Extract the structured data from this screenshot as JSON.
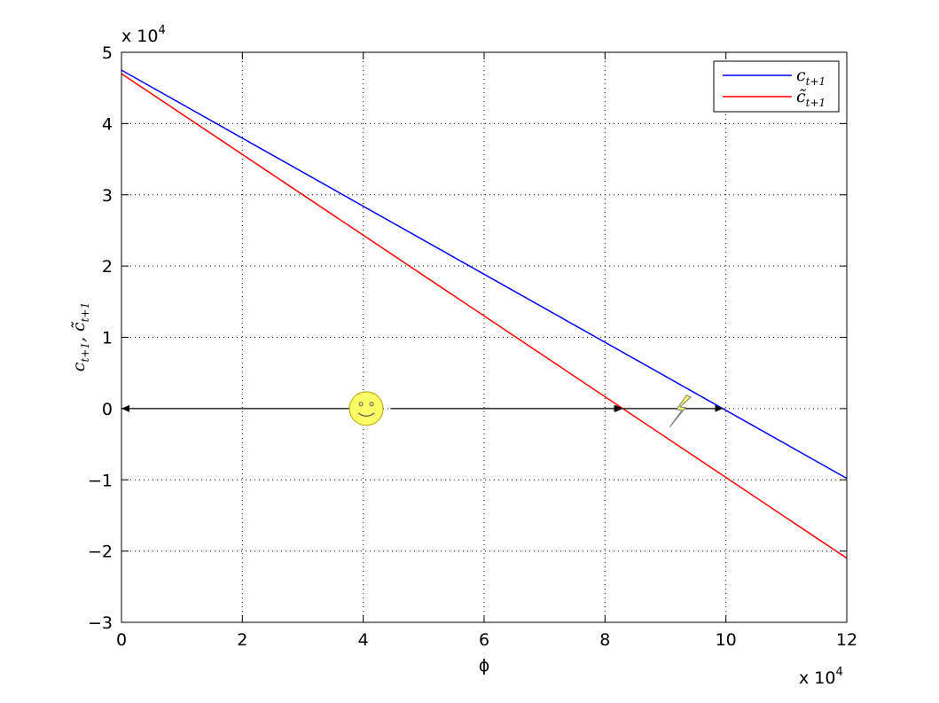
{
  "chart_data": {
    "type": "line",
    "xlabel": "ϕ",
    "ylabel": "c_{t+1}, c̃_{t+1}",
    "x_multiplier_label": "x 10",
    "x_multiplier_exp": "4",
    "y_multiplier_label": "x 10",
    "y_multiplier_exp": "4",
    "xlim": [
      0,
      12
    ],
    "ylim": [
      -3,
      5
    ],
    "x_ticks": [
      0,
      2,
      4,
      6,
      8,
      10,
      12
    ],
    "y_ticks": [
      -3,
      -2,
      -1,
      0,
      1,
      2,
      3,
      4,
      5
    ],
    "x_tick_labels": [
      "0",
      "2",
      "4",
      "6",
      "8",
      "10",
      "12"
    ],
    "y_tick_labels": [
      "−3",
      "−2",
      "−1",
      "0",
      "1",
      "2",
      "3",
      "4",
      "5"
    ],
    "grid": true,
    "legend_position": "top-right",
    "series": [
      {
        "name": "c_{t+1}",
        "legend_base": "c",
        "legend_sub": "t+1",
        "color": "#0000ff",
        "x": [
          0,
          12
        ],
        "y": [
          4.75,
          -0.98
        ]
      },
      {
        "name": "c̃_{t+1}",
        "legend_base": "c̃",
        "legend_sub": "t+1",
        "color": "#ff0000",
        "x": [
          0,
          12
        ],
        "y": [
          4.7,
          -2.1
        ]
      }
    ],
    "annotations": {
      "arrow_line_y": 0,
      "left_arrow_from": 3.8,
      "left_arrow_to": 0,
      "middle_arrow_from": 4.45,
      "middle_arrow_to": 8.28,
      "right_arrow_from": 8.3,
      "right_arrow_to": 9.95,
      "smiley_x": 4.05,
      "bolt_x": 9.2,
      "smiley_color": "#ffff66",
      "bolt_color": "#ffff66"
    }
  }
}
